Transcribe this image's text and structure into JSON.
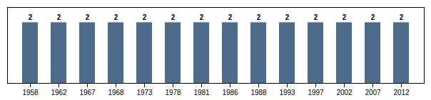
{
  "chart_data": {
    "type": "bar",
    "categories": [
      "1958",
      "1962",
      "1967",
      "1968",
      "1973",
      "1978",
      "1981",
      "1986",
      "1988",
      "1993",
      "1997",
      "2002",
      "2007",
      "2012"
    ],
    "values": [
      2,
      2,
      2,
      2,
      2,
      2,
      2,
      2,
      2,
      2,
      2,
      2,
      2,
      2
    ],
    "color": "#4d6b8a",
    "ylim": [
      0,
      2.5
    ],
    "data_labels": true,
    "tick_labels": "x",
    "grid": false
  }
}
